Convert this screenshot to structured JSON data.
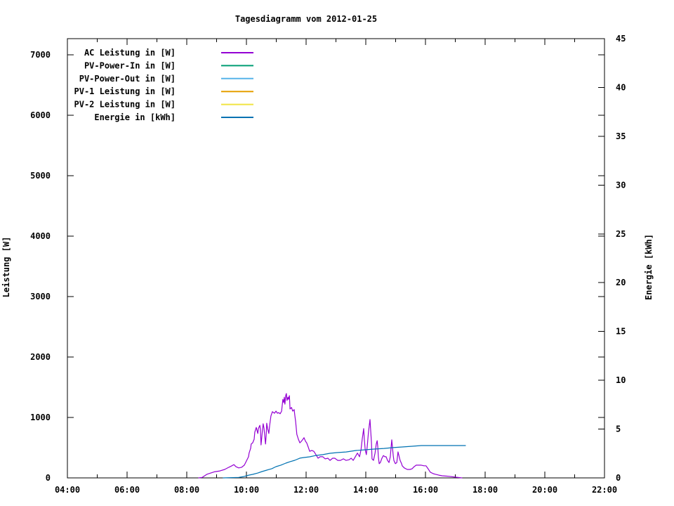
{
  "title": "Tagesdiagramm vom 2012-01-25",
  "chart_data": {
    "type": "line",
    "title": "Tagesdiagramm vom 2012-01-25",
    "grid": false,
    "legend": {
      "position": "top-left-inside"
    },
    "x_axis": {
      "unit": "time",
      "range_hours": [
        4,
        22
      ],
      "major_step_hours": 2,
      "minor_step_hours": 1,
      "tick_labels": [
        "04:00",
        "06:00",
        "08:00",
        "10:00",
        "12:00",
        "14:00",
        "16:00",
        "18:00",
        "20:00",
        "22:00"
      ]
    },
    "y_axis_left": {
      "label": "Leistung [W]",
      "range": [
        0,
        7267
      ],
      "ticks": [
        0,
        1000,
        2000,
        3000,
        4000,
        5000,
        6000,
        7000
      ]
    },
    "y_axis_right": {
      "label": "Energie [kWh]",
      "range": [
        0,
        45
      ],
      "ticks": [
        0,
        5,
        10,
        15,
        20,
        25,
        30,
        35,
        40,
        45
      ]
    },
    "series": [
      {
        "name": "AC Leistung in [W]",
        "color": "#9400d3",
        "axis": "left",
        "points": [
          [
            8.4,
            0
          ],
          [
            8.52,
            8
          ],
          [
            8.68,
            60
          ],
          [
            8.92,
            100
          ],
          [
            9.11,
            115
          ],
          [
            9.27,
            140
          ],
          [
            9.41,
            175
          ],
          [
            9.51,
            200
          ],
          [
            9.58,
            220
          ],
          [
            9.65,
            185
          ],
          [
            9.74,
            165
          ],
          [
            9.84,
            175
          ],
          [
            9.93,
            210
          ],
          [
            10.0,
            280
          ],
          [
            10.07,
            350
          ],
          [
            10.09,
            410
          ],
          [
            10.14,
            490
          ],
          [
            10.16,
            560
          ],
          [
            10.21,
            580
          ],
          [
            10.26,
            640
          ],
          [
            10.28,
            755
          ],
          [
            10.33,
            835
          ],
          [
            10.38,
            735
          ],
          [
            10.4,
            815
          ],
          [
            10.45,
            870
          ],
          [
            10.47,
            790
          ],
          [
            10.49,
            545
          ],
          [
            10.52,
            700
          ],
          [
            10.56,
            895
          ],
          [
            10.59,
            815
          ],
          [
            10.64,
            560
          ],
          [
            10.66,
            700
          ],
          [
            10.68,
            905
          ],
          [
            10.71,
            815
          ],
          [
            10.75,
            735
          ],
          [
            10.78,
            870
          ],
          [
            10.82,
            1025
          ],
          [
            10.87,
            1095
          ],
          [
            10.94,
            1070
          ],
          [
            10.99,
            1105
          ],
          [
            11.04,
            1070
          ],
          [
            11.08,
            1080
          ],
          [
            11.13,
            1060
          ],
          [
            11.18,
            1105
          ],
          [
            11.22,
            1300
          ],
          [
            11.25,
            1245
          ],
          [
            11.27,
            1335
          ],
          [
            11.29,
            1220
          ],
          [
            11.32,
            1370
          ],
          [
            11.34,
            1395
          ],
          [
            11.36,
            1280
          ],
          [
            11.39,
            1335
          ],
          [
            11.41,
            1300
          ],
          [
            11.44,
            1360
          ],
          [
            11.46,
            1140
          ],
          [
            11.51,
            1165
          ],
          [
            11.55,
            1105
          ],
          [
            11.6,
            1130
          ],
          [
            11.62,
            1045
          ],
          [
            11.65,
            930
          ],
          [
            11.69,
            720
          ],
          [
            11.74,
            640
          ],
          [
            11.79,
            580
          ],
          [
            11.84,
            605
          ],
          [
            11.88,
            630
          ],
          [
            11.93,
            665
          ],
          [
            11.98,
            605
          ],
          [
            12.02,
            580
          ],
          [
            12.07,
            510
          ],
          [
            12.12,
            440
          ],
          [
            12.19,
            455
          ],
          [
            12.26,
            440
          ],
          [
            12.33,
            385
          ],
          [
            12.4,
            325
          ],
          [
            12.47,
            350
          ],
          [
            12.56,
            350
          ],
          [
            12.64,
            315
          ],
          [
            12.73,
            325
          ],
          [
            12.8,
            290
          ],
          [
            12.89,
            325
          ],
          [
            12.96,
            325
          ],
          [
            13.06,
            290
          ],
          [
            13.15,
            290
          ],
          [
            13.25,
            315
          ],
          [
            13.34,
            290
          ],
          [
            13.44,
            300
          ],
          [
            13.51,
            325
          ],
          [
            13.58,
            290
          ],
          [
            13.65,
            350
          ],
          [
            13.72,
            410
          ],
          [
            13.79,
            350
          ],
          [
            13.84,
            465
          ],
          [
            13.88,
            640
          ],
          [
            13.93,
            815
          ],
          [
            13.95,
            640
          ],
          [
            13.98,
            465
          ],
          [
            14.02,
            385
          ],
          [
            14.05,
            525
          ],
          [
            14.09,
            755
          ],
          [
            14.14,
            965
          ],
          [
            14.16,
            815
          ],
          [
            14.19,
            580
          ],
          [
            14.21,
            315
          ],
          [
            14.26,
            290
          ],
          [
            14.31,
            410
          ],
          [
            14.35,
            560
          ],
          [
            14.38,
            615
          ],
          [
            14.4,
            525
          ],
          [
            14.42,
            350
          ],
          [
            14.45,
            235
          ],
          [
            14.49,
            255
          ],
          [
            14.54,
            325
          ],
          [
            14.59,
            370
          ],
          [
            14.64,
            350
          ],
          [
            14.68,
            350
          ],
          [
            14.73,
            290
          ],
          [
            14.78,
            255
          ],
          [
            14.82,
            350
          ],
          [
            14.87,
            630
          ],
          [
            14.89,
            525
          ],
          [
            14.92,
            370
          ],
          [
            14.94,
            290
          ],
          [
            14.99,
            235
          ],
          [
            15.04,
            255
          ],
          [
            15.08,
            430
          ],
          [
            15.11,
            370
          ],
          [
            15.15,
            290
          ],
          [
            15.2,
            235
          ],
          [
            15.22,
            200
          ],
          [
            15.29,
            165
          ],
          [
            15.39,
            140
          ],
          [
            15.48,
            140
          ],
          [
            15.55,
            150
          ],
          [
            15.62,
            185
          ],
          [
            15.69,
            210
          ],
          [
            15.79,
            210
          ],
          [
            15.86,
            210
          ],
          [
            15.95,
            200
          ],
          [
            16.02,
            200
          ],
          [
            16.09,
            150
          ],
          [
            16.16,
            95
          ],
          [
            16.26,
            70
          ],
          [
            16.33,
            60
          ],
          [
            16.45,
            45
          ],
          [
            16.56,
            35
          ],
          [
            16.8,
            25
          ],
          [
            17.04,
            10
          ],
          [
            17.22,
            0
          ]
        ]
      },
      {
        "name": "PV-Power-In in [W]",
        "color": "#009e73",
        "axis": "left",
        "points": []
      },
      {
        "name": "PV-Power-Out in [W]",
        "color": "#56b4e9",
        "axis": "left",
        "points": []
      },
      {
        "name": "PV-1 Leistung in [W]",
        "color": "#e69f00",
        "axis": "left",
        "points": []
      },
      {
        "name": "PV-2 Leistung in [W]",
        "color": "#f0e442",
        "axis": "left",
        "points": []
      },
      {
        "name": "Energie in [kWh]",
        "color": "#0072b2",
        "axis": "right",
        "points": [
          [
            9.22,
            0
          ],
          [
            9.74,
            0.05
          ],
          [
            9.91,
            0.14
          ],
          [
            10.09,
            0.29
          ],
          [
            10.21,
            0.36
          ],
          [
            10.38,
            0.5
          ],
          [
            10.52,
            0.65
          ],
          [
            10.68,
            0.79
          ],
          [
            10.85,
            0.94
          ],
          [
            10.99,
            1.15
          ],
          [
            11.15,
            1.3
          ],
          [
            11.32,
            1.51
          ],
          [
            11.46,
            1.66
          ],
          [
            11.62,
            1.8
          ],
          [
            11.79,
            2.02
          ],
          [
            11.93,
            2.09
          ],
          [
            12.12,
            2.16
          ],
          [
            12.33,
            2.3
          ],
          [
            12.56,
            2.38
          ],
          [
            12.8,
            2.52
          ],
          [
            13.04,
            2.59
          ],
          [
            13.34,
            2.66
          ],
          [
            13.67,
            2.81
          ],
          [
            13.98,
            2.88
          ],
          [
            14.28,
            2.95
          ],
          [
            14.61,
            3.02
          ],
          [
            14.92,
            3.1
          ],
          [
            15.22,
            3.17
          ],
          [
            15.55,
            3.24
          ],
          [
            15.86,
            3.31
          ],
          [
            16.16,
            3.31
          ],
          [
            16.56,
            3.31
          ],
          [
            16.96,
            3.31
          ],
          [
            17.34,
            3.31
          ]
        ]
      }
    ],
    "colors": {
      "background": "#ffffff",
      "axis": "#000000",
      "ac": "#9400d3",
      "pv_power_in": "#009e73",
      "pv_power_out": "#56b4e9",
      "pv1": "#e69f00",
      "pv2": "#f0e442",
      "energie": "#0072b2"
    }
  }
}
